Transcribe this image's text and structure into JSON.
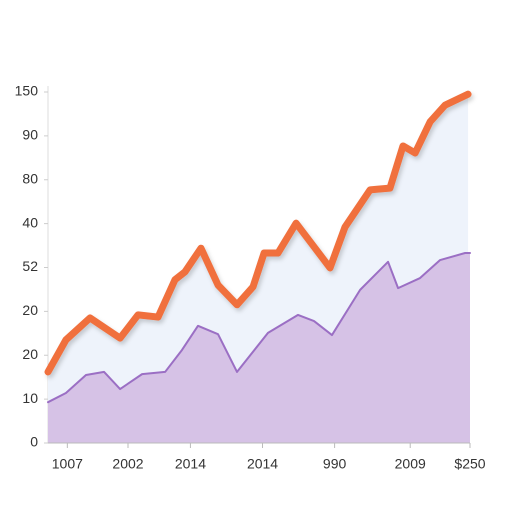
{
  "chart_data": {
    "type": "area",
    "xlim": [
      0,
      24
    ],
    "ylim": [
      0,
      8
    ],
    "xticks": [
      {
        "value": 1.1,
        "label": "1007"
      },
      {
        "value": 4.55,
        "label": "2002"
      },
      {
        "value": 8.1,
        "label": "2014"
      },
      {
        "value": 12.2,
        "label": "2014"
      },
      {
        "value": 16.3,
        "label": "990"
      },
      {
        "value": 20.6,
        "label": "2009"
      },
      {
        "value": 24,
        "label": "$250"
      }
    ],
    "yticks": [
      {
        "value": 0,
        "label": "0"
      },
      {
        "value": 1,
        "label": "10"
      },
      {
        "value": 2,
        "label": "20"
      },
      {
        "value": 3,
        "label": "20"
      },
      {
        "value": 4,
        "label": "52"
      },
      {
        "value": 5,
        "label": "40"
      },
      {
        "value": 6,
        "label": "80"
      },
      {
        "value": 7,
        "label": "90"
      },
      {
        "value": 8,
        "label": "150"
      }
    ],
    "series": [
      {
        "color": "#f0703e",
        "fill": "#eef3fb",
        "x": [
          0,
          1.02,
          2.39,
          4.1,
          5.12,
          6.26,
          7.22,
          7.79,
          8.7,
          9.67,
          10.75,
          11.66,
          12.29,
          13.08,
          14.11,
          15.19,
          16.04,
          16.89,
          18.32,
          19.45,
          20.19,
          20.88,
          21.73,
          22.58,
          23.89
        ],
        "values": [
          1.62,
          2.35,
          2.85,
          2.39,
          2.92,
          2.87,
          3.72,
          3.9,
          4.44,
          3.6,
          3.15,
          3.56,
          4.33,
          4.33,
          5.01,
          4.44,
          3.99,
          4.92,
          5.77,
          5.81,
          6.77,
          6.61,
          7.32,
          7.7,
          7.95
        ]
      },
      {
        "color": "#9b6fc4",
        "fill": "#d6c2e6",
        "x": [
          0,
          1.02,
          2.16,
          3.19,
          4.1,
          5.35,
          6.66,
          7.62,
          8.53,
          9.67,
          10.75,
          12.51,
          14.22,
          15.13,
          16.15,
          17.75,
          19.34,
          19.91,
          21.16,
          22.3,
          23.72,
          24
        ],
        "values": [
          0.93,
          1.14,
          1.55,
          1.62,
          1.23,
          1.57,
          1.62,
          2.12,
          2.67,
          2.48,
          1.62,
          2.51,
          2.92,
          2.78,
          2.46,
          3.49,
          4.13,
          3.53,
          3.76,
          4.17,
          4.33,
          4.33
        ]
      }
    ]
  }
}
